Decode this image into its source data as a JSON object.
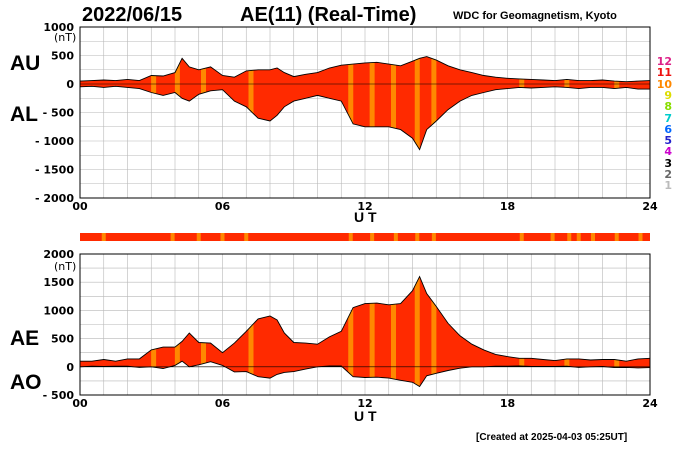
{
  "header": {
    "date": "2022/06/15",
    "title": "AE(11) (Real-Time)",
    "source": "WDC for Geomagnetism, Kyoto"
  },
  "footer": {
    "created": "[Created at 2025-04-03 05:25UT]"
  },
  "legend": {
    "items": [
      {
        "label": "12",
        "color": "#dd2288"
      },
      {
        "label": "11",
        "color": "#ee1111"
      },
      {
        "label": "10",
        "color": "#ff8800"
      },
      {
        "label": "9",
        "color": "#dddd00"
      },
      {
        "label": "8",
        "color": "#88dd00"
      },
      {
        "label": "7",
        "color": "#00cccc"
      },
      {
        "label": "6",
        "color": "#0066ff"
      },
      {
        "label": "5",
        "color": "#2222cc"
      },
      {
        "label": "4",
        "color": "#cc00cc"
      },
      {
        "label": "3",
        "color": "#000000"
      },
      {
        "label": "2",
        "color": "#666666"
      },
      {
        "label": "1",
        "color": "#bbbbbb"
      }
    ]
  },
  "chart_data": [
    {
      "type": "area",
      "panel": "AU/AL",
      "labels": {
        "upper": "AU",
        "lower": "AL"
      },
      "xlabel": "U T",
      "ylabel": "(nT)",
      "xlim": [
        0,
        24
      ],
      "ylim": [
        -2000,
        1000
      ],
      "xticks": [
        "00",
        "06",
        "12",
        "18",
        "24"
      ],
      "yticks": [
        {
          "v": 1000,
          "t": "1000"
        },
        {
          "v": 500,
          "t": "500"
        },
        {
          "v": 0,
          "t": "0"
        },
        {
          "v": -500,
          "t": "- 500"
        },
        {
          "v": -1000,
          "t": "- 1000"
        },
        {
          "v": -1500,
          "t": "- 1500"
        },
        {
          "v": -2000,
          "t": "- 2000"
        }
      ],
      "fill_color": "#ff2a00",
      "grid": true,
      "series": [
        {
          "name": "AU",
          "x": [
            0,
            0.5,
            1,
            1.5,
            2,
            2.5,
            3,
            3.5,
            4,
            4.3,
            4.6,
            5,
            5.5,
            6,
            6.5,
            7,
            7.5,
            8,
            8.3,
            8.6,
            9,
            9.5,
            10,
            10.5,
            11,
            11.5,
            12,
            12.5,
            13,
            13.5,
            14,
            14.3,
            14.6,
            15,
            15.5,
            16,
            16.5,
            17,
            17.5,
            18,
            18.5,
            19,
            19.5,
            20,
            20.5,
            21,
            21.5,
            22,
            22.5,
            23,
            23.5,
            24
          ],
          "values": [
            50,
            60,
            70,
            60,
            80,
            60,
            150,
            140,
            200,
            450,
            300,
            250,
            300,
            150,
            120,
            230,
            250,
            250,
            280,
            200,
            130,
            170,
            200,
            280,
            330,
            350,
            370,
            380,
            350,
            320,
            400,
            450,
            480,
            420,
            320,
            250,
            200,
            150,
            120,
            100,
            90,
            80,
            70,
            60,
            80,
            60,
            60,
            70,
            50,
            40,
            50,
            60
          ]
        },
        {
          "name": "AL",
          "x": [
            0,
            0.5,
            1,
            1.5,
            2,
            2.5,
            3,
            3.5,
            4,
            4.3,
            4.6,
            5,
            5.5,
            6,
            6.5,
            7,
            7.5,
            8,
            8.3,
            8.6,
            9,
            9.5,
            10,
            10.5,
            11,
            11.5,
            12,
            12.5,
            13,
            13.5,
            14,
            14.3,
            14.6,
            15,
            15.5,
            16,
            16.5,
            17,
            17.5,
            18,
            18.5,
            19,
            19.5,
            20,
            20.5,
            21,
            21.5,
            22,
            22.5,
            23,
            23.5,
            24
          ],
          "values": [
            -50,
            -40,
            -60,
            -40,
            -60,
            -80,
            -150,
            -200,
            -150,
            -250,
            -300,
            -180,
            -120,
            -100,
            -300,
            -400,
            -600,
            -650,
            -550,
            -400,
            -300,
            -250,
            -200,
            -250,
            -300,
            -700,
            -750,
            -750,
            -750,
            -800,
            -950,
            -1150,
            -800,
            -650,
            -450,
            -300,
            -200,
            -150,
            -100,
            -80,
            -60,
            -70,
            -60,
            -50,
            -60,
            -80,
            -60,
            -60,
            -80,
            -60,
            -90,
            -90
          ]
        }
      ],
      "highlight_bands": [
        {
          "x": 3.1,
          "color": "#ff8800"
        },
        {
          "x": 4.1,
          "color": "#ff8800"
        },
        {
          "x": 5.2,
          "color": "#ff8800"
        },
        {
          "x": 7.2,
          "color": "#ff8800"
        },
        {
          "x": 11.4,
          "color": "#ff8800"
        },
        {
          "x": 12.3,
          "color": "#ff8800"
        },
        {
          "x": 13.2,
          "color": "#ff8800"
        },
        {
          "x": 14.2,
          "color": "#ff8800"
        },
        {
          "x": 14.9,
          "color": "#ff8800"
        },
        {
          "x": 18.6,
          "color": "#ff8800"
        },
        {
          "x": 20.5,
          "color": "#ff8800"
        },
        {
          "x": 22.6,
          "color": "#ff8800"
        }
      ]
    },
    {
      "type": "area",
      "panel": "AE/AO",
      "labels": {
        "upper": "AE",
        "lower": "AO"
      },
      "xlabel": "U T",
      "ylabel": "(nT)",
      "xlim": [
        0,
        24
      ],
      "ylim": [
        -500,
        2000
      ],
      "xticks": [
        "00",
        "06",
        "12",
        "18",
        "24"
      ],
      "yticks": [
        {
          "v": 2000,
          "t": "2000"
        },
        {
          "v": 1500,
          "t": "1500"
        },
        {
          "v": 1000,
          "t": "1000"
        },
        {
          "v": 500,
          "t": "500"
        },
        {
          "v": 0,
          "t": "0"
        },
        {
          "v": -500,
          "t": "- 500"
        }
      ],
      "fill_color": "#ff2a00",
      "grid": true,
      "series": [
        {
          "name": "AE",
          "x": [
            0,
            0.5,
            1,
            1.5,
            2,
            2.5,
            3,
            3.5,
            4,
            4.3,
            4.6,
            5,
            5.5,
            6,
            6.5,
            7,
            7.5,
            8,
            8.3,
            8.6,
            9,
            9.5,
            10,
            10.5,
            11,
            11.5,
            12,
            12.5,
            13,
            13.5,
            14,
            14.3,
            14.6,
            15,
            15.5,
            16,
            16.5,
            17,
            17.5,
            18,
            18.5,
            19,
            19.5,
            20,
            20.5,
            21,
            21.5,
            22,
            22.5,
            23,
            23.5,
            24
          ],
          "values": [
            100,
            100,
            130,
            100,
            140,
            140,
            300,
            350,
            350,
            450,
            600,
            430,
            420,
            250,
            420,
            630,
            850,
            900,
            830,
            600,
            430,
            420,
            400,
            530,
            630,
            1050,
            1120,
            1130,
            1100,
            1120,
            1350,
            1600,
            1300,
            1070,
            770,
            550,
            400,
            300,
            220,
            180,
            150,
            150,
            130,
            110,
            140,
            140,
            120,
            130,
            130,
            100,
            140,
            150
          ]
        },
        {
          "name": "AO",
          "x": [
            0,
            0.5,
            1,
            1.5,
            2,
            2.5,
            3,
            3.5,
            4,
            4.3,
            4.6,
            5,
            5.5,
            6,
            6.5,
            7,
            7.5,
            8,
            8.3,
            8.6,
            9,
            9.5,
            10,
            10.5,
            11,
            11.5,
            12,
            12.5,
            13,
            13.5,
            14,
            14.3,
            14.6,
            15,
            15.5,
            16,
            16.5,
            17,
            17.5,
            18,
            18.5,
            19,
            19.5,
            20,
            20.5,
            21,
            21.5,
            22,
            22.5,
            23,
            23.5,
            24
          ],
          "values": [
            0,
            10,
            5,
            10,
            10,
            -10,
            0,
            -30,
            25,
            100,
            0,
            35,
            90,
            25,
            -90,
            -85,
            -175,
            -200,
            -135,
            -100,
            -85,
            -40,
            0,
            15,
            15,
            -175,
            -190,
            -185,
            -200,
            -240,
            -275,
            -350,
            -160,
            -115,
            -65,
            -25,
            0,
            0,
            10,
            10,
            15,
            5,
            5,
            5,
            10,
            -10,
            0,
            5,
            -15,
            -10,
            -20,
            -15
          ]
        }
      ],
      "highlight_bands": [
        {
          "x": 3.1,
          "color": "#ff8800"
        },
        {
          "x": 4.1,
          "color": "#ff8800"
        },
        {
          "x": 5.2,
          "color": "#ff8800"
        },
        {
          "x": 7.2,
          "color": "#ff8800"
        },
        {
          "x": 11.4,
          "color": "#ff8800"
        },
        {
          "x": 12.3,
          "color": "#ff8800"
        },
        {
          "x": 13.2,
          "color": "#ff8800"
        },
        {
          "x": 14.2,
          "color": "#ff8800"
        },
        {
          "x": 14.9,
          "color": "#ff8800"
        },
        {
          "x": 18.6,
          "color": "#ff8800"
        },
        {
          "x": 20.5,
          "color": "#ff8800"
        },
        {
          "x": 22.6,
          "color": "#ff8800"
        }
      ]
    }
  ],
  "coverage_bar": {
    "color": "#ff2a00",
    "ticks": [
      1.0,
      3.9,
      5.0,
      6.0,
      7.0,
      11.4,
      12.3,
      13.3,
      14.2,
      14.9,
      18.6,
      19.9,
      20.6,
      21.0,
      21.6,
      22.6,
      23.6
    ],
    "tick_color": "#ff8800"
  }
}
